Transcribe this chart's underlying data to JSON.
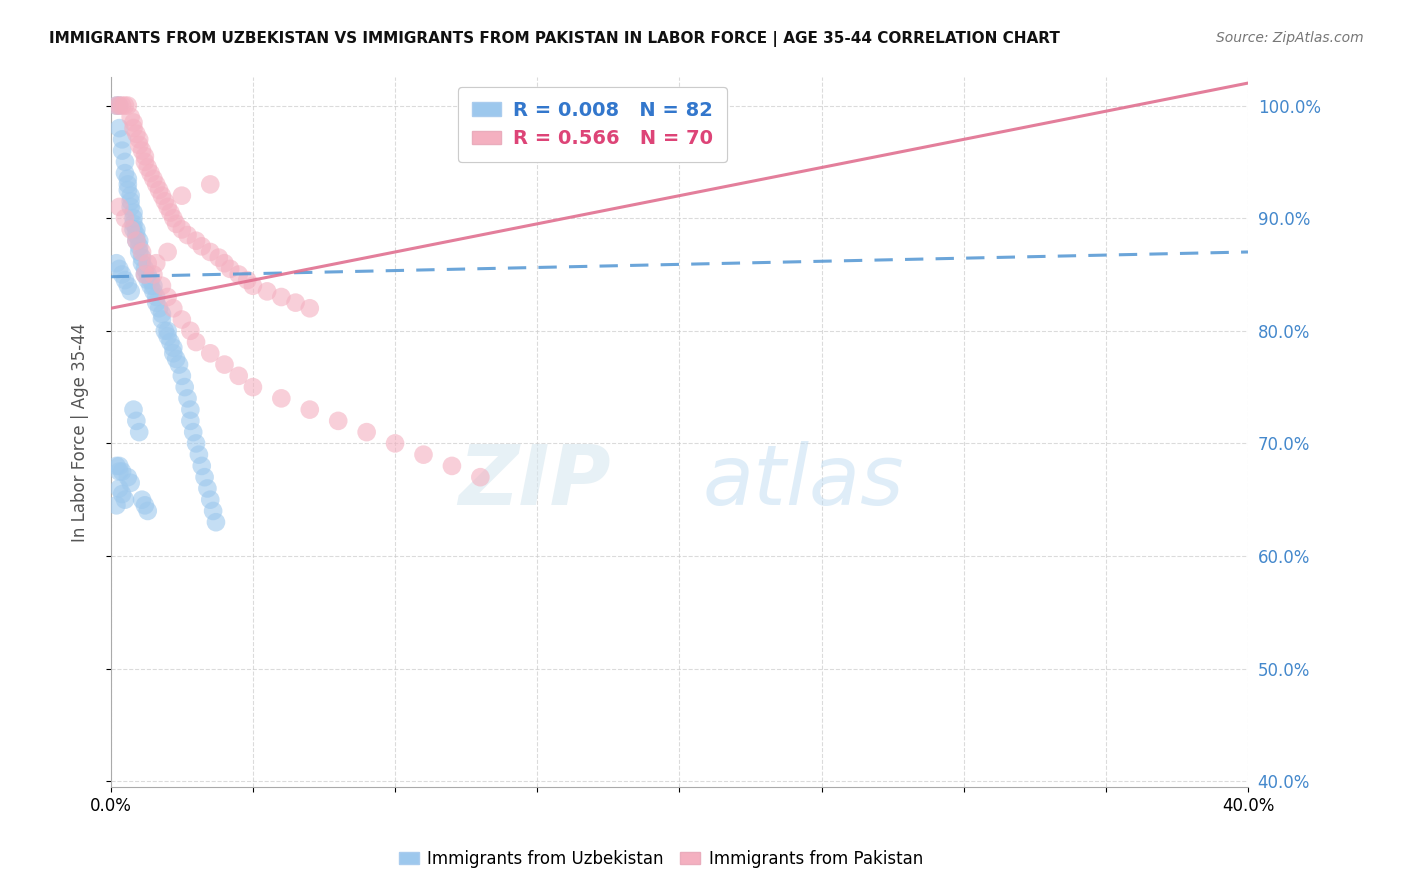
{
  "title": "IMMIGRANTS FROM UZBEKISTAN VS IMMIGRANTS FROM PAKISTAN IN LABOR FORCE | AGE 35-44 CORRELATION CHART",
  "source": "Source: ZipAtlas.com",
  "ylabel": "In Labor Force | Age 35-44",
  "xlim": [
    0.0,
    0.4
  ],
  "ylim": [
    0.395,
    1.025
  ],
  "yticks": [
    0.4,
    0.5,
    0.6,
    0.7,
    0.8,
    0.9,
    1.0
  ],
  "xtick_positions": [
    0.0,
    0.05,
    0.1,
    0.15,
    0.2,
    0.25,
    0.3,
    0.35,
    0.4
  ],
  "xtick_labels": [
    "0.0%",
    "",
    "",
    "",
    "",
    "",
    "",
    "",
    "40.0%"
  ],
  "color_uzbekistan": "#9dc8ed",
  "color_pakistan": "#f4b0c0",
  "color_uzbekistan_line": "#5b9bd5",
  "color_pakistan_line": "#e07090",
  "legend_uzbekistan": "Immigrants from Uzbekistan",
  "legend_pakistan": "Immigrants from Pakistan",
  "R_uzbekistan": 0.008,
  "N_uzbekistan": 82,
  "R_pakistan": 0.566,
  "N_pakistan": 70,
  "watermark_zip": "ZIP",
  "watermark_atlas": "atlas",
  "uz_trend_x": [
    0.0,
    0.4
  ],
  "uz_trend_y": [
    0.848,
    0.87
  ],
  "pk_trend_x": [
    0.0,
    0.4
  ],
  "pk_trend_y": [
    0.82,
    1.02
  ],
  "right_label_color": "#4488cc",
  "grid_color": "#cccccc",
  "legend_r_uz_color": "#3377cc",
  "legend_r_pk_color": "#dd4477",
  "scatter_uz_x": [
    0.002,
    0.003,
    0.003,
    0.004,
    0.004,
    0.005,
    0.005,
    0.006,
    0.006,
    0.006,
    0.007,
    0.007,
    0.007,
    0.008,
    0.008,
    0.008,
    0.008,
    0.009,
    0.009,
    0.009,
    0.01,
    0.01,
    0.01,
    0.011,
    0.011,
    0.012,
    0.012,
    0.013,
    0.013,
    0.014,
    0.014,
    0.015,
    0.015,
    0.016,
    0.016,
    0.017,
    0.018,
    0.018,
    0.019,
    0.02,
    0.02,
    0.021,
    0.022,
    0.022,
    0.023,
    0.024,
    0.025,
    0.026,
    0.027,
    0.028,
    0.028,
    0.029,
    0.03,
    0.031,
    0.032,
    0.033,
    0.034,
    0.035,
    0.036,
    0.037,
    0.002,
    0.003,
    0.004,
    0.005,
    0.006,
    0.007,
    0.003,
    0.004,
    0.005,
    0.002,
    0.003,
    0.004,
    0.006,
    0.007,
    0.008,
    0.009,
    0.01,
    0.011,
    0.012,
    0.013,
    0.002,
    0.003
  ],
  "scatter_uz_y": [
    1.0,
    1.0,
    0.98,
    0.97,
    0.96,
    0.95,
    0.94,
    0.935,
    0.93,
    0.925,
    0.92,
    0.915,
    0.91,
    0.905,
    0.9,
    0.895,
    0.89,
    0.89,
    0.885,
    0.88,
    0.88,
    0.875,
    0.87,
    0.865,
    0.86,
    0.855,
    0.85,
    0.85,
    0.845,
    0.845,
    0.84,
    0.84,
    0.835,
    0.83,
    0.825,
    0.82,
    0.815,
    0.81,
    0.8,
    0.8,
    0.795,
    0.79,
    0.785,
    0.78,
    0.775,
    0.77,
    0.76,
    0.75,
    0.74,
    0.73,
    0.72,
    0.71,
    0.7,
    0.69,
    0.68,
    0.67,
    0.66,
    0.65,
    0.64,
    0.63,
    0.86,
    0.855,
    0.85,
    0.845,
    0.84,
    0.835,
    0.66,
    0.655,
    0.65,
    0.645,
    0.68,
    0.675,
    0.67,
    0.665,
    0.73,
    0.72,
    0.71,
    0.65,
    0.645,
    0.64,
    0.68,
    0.675
  ],
  "scatter_pk_x": [
    0.002,
    0.003,
    0.004,
    0.005,
    0.006,
    0.007,
    0.008,
    0.008,
    0.009,
    0.01,
    0.01,
    0.011,
    0.012,
    0.012,
    0.013,
    0.014,
    0.015,
    0.016,
    0.017,
    0.018,
    0.019,
    0.02,
    0.021,
    0.022,
    0.023,
    0.025,
    0.027,
    0.03,
    0.032,
    0.035,
    0.038,
    0.04,
    0.042,
    0.045,
    0.048,
    0.05,
    0.055,
    0.06,
    0.065,
    0.07,
    0.003,
    0.005,
    0.007,
    0.009,
    0.011,
    0.013,
    0.015,
    0.018,
    0.02,
    0.022,
    0.025,
    0.028,
    0.03,
    0.035,
    0.04,
    0.045,
    0.05,
    0.06,
    0.07,
    0.08,
    0.09,
    0.1,
    0.11,
    0.12,
    0.13,
    0.035,
    0.025,
    0.02,
    0.016,
    0.012
  ],
  "scatter_pk_y": [
    1.0,
    1.0,
    1.0,
    1.0,
    1.0,
    0.99,
    0.985,
    0.98,
    0.975,
    0.97,
    0.965,
    0.96,
    0.955,
    0.95,
    0.945,
    0.94,
    0.935,
    0.93,
    0.925,
    0.92,
    0.915,
    0.91,
    0.905,
    0.9,
    0.895,
    0.89,
    0.885,
    0.88,
    0.875,
    0.87,
    0.865,
    0.86,
    0.855,
    0.85,
    0.845,
    0.84,
    0.835,
    0.83,
    0.825,
    0.82,
    0.91,
    0.9,
    0.89,
    0.88,
    0.87,
    0.86,
    0.85,
    0.84,
    0.83,
    0.82,
    0.81,
    0.8,
    0.79,
    0.78,
    0.77,
    0.76,
    0.75,
    0.74,
    0.73,
    0.72,
    0.71,
    0.7,
    0.69,
    0.68,
    0.67,
    0.93,
    0.92,
    0.87,
    0.86,
    0.85
  ]
}
